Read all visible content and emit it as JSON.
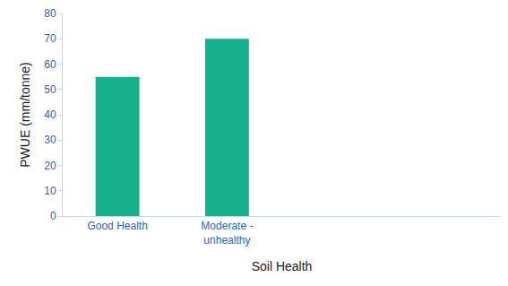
{
  "chart_data": {
    "type": "bar",
    "x_label": "Soil Health",
    "y_label": "PWUE (mm/tonne)",
    "categories": [
      "Good Health",
      "Moderate - unhealthy",
      null,
      null
    ],
    "values": [
      55,
      70,
      null,
      null
    ],
    "color": "#17b08c",
    "ylim": [
      0,
      80
    ],
    "yticks": [
      0,
      10,
      20,
      30,
      40,
      50,
      60,
      70,
      80
    ],
    "grid": false
  }
}
